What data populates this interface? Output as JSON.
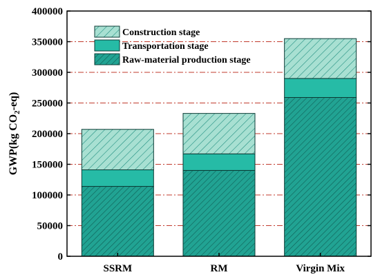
{
  "chart_data": {
    "type": "bar",
    "stacked": true,
    "title": "",
    "xlabel": "",
    "ylabel": "GWP(kg CO2-eq)",
    "ylabel_parts": {
      "prefix": "GWP(kg CO",
      "sub": "2",
      "suffix": "-eq)"
    },
    "categories": [
      "SSRM",
      "RM",
      "Virgin Mix"
    ],
    "ylim": [
      0,
      400000
    ],
    "yticks": [
      0,
      50000,
      100000,
      150000,
      200000,
      250000,
      300000,
      350000,
      400000
    ],
    "ytick_labels": [
      "0",
      "50000",
      "100000",
      "150000",
      "200000",
      "250000",
      "300000",
      "350000",
      "400000"
    ],
    "grid": {
      "y": true,
      "style": "dash-dot",
      "color": "#c0392b"
    },
    "legend_position": "top-left",
    "series": [
      {
        "name": "Raw-material production stage",
        "values": [
          114000,
          140000,
          259000
        ],
        "color": "#21a393",
        "pattern": "dense-hatch"
      },
      {
        "name": "Transportation stage",
        "values": [
          27000,
          27000,
          31000
        ],
        "color": "#26bba6",
        "pattern": "solid"
      },
      {
        "name": "Construction stage",
        "values": [
          66000,
          66000,
          65000
        ],
        "color": "#a8e0d2",
        "pattern": "sparse-hatch"
      }
    ],
    "legend_order": [
      "Construction stage",
      "Transportation stage",
      "Raw-material production stage"
    ]
  }
}
